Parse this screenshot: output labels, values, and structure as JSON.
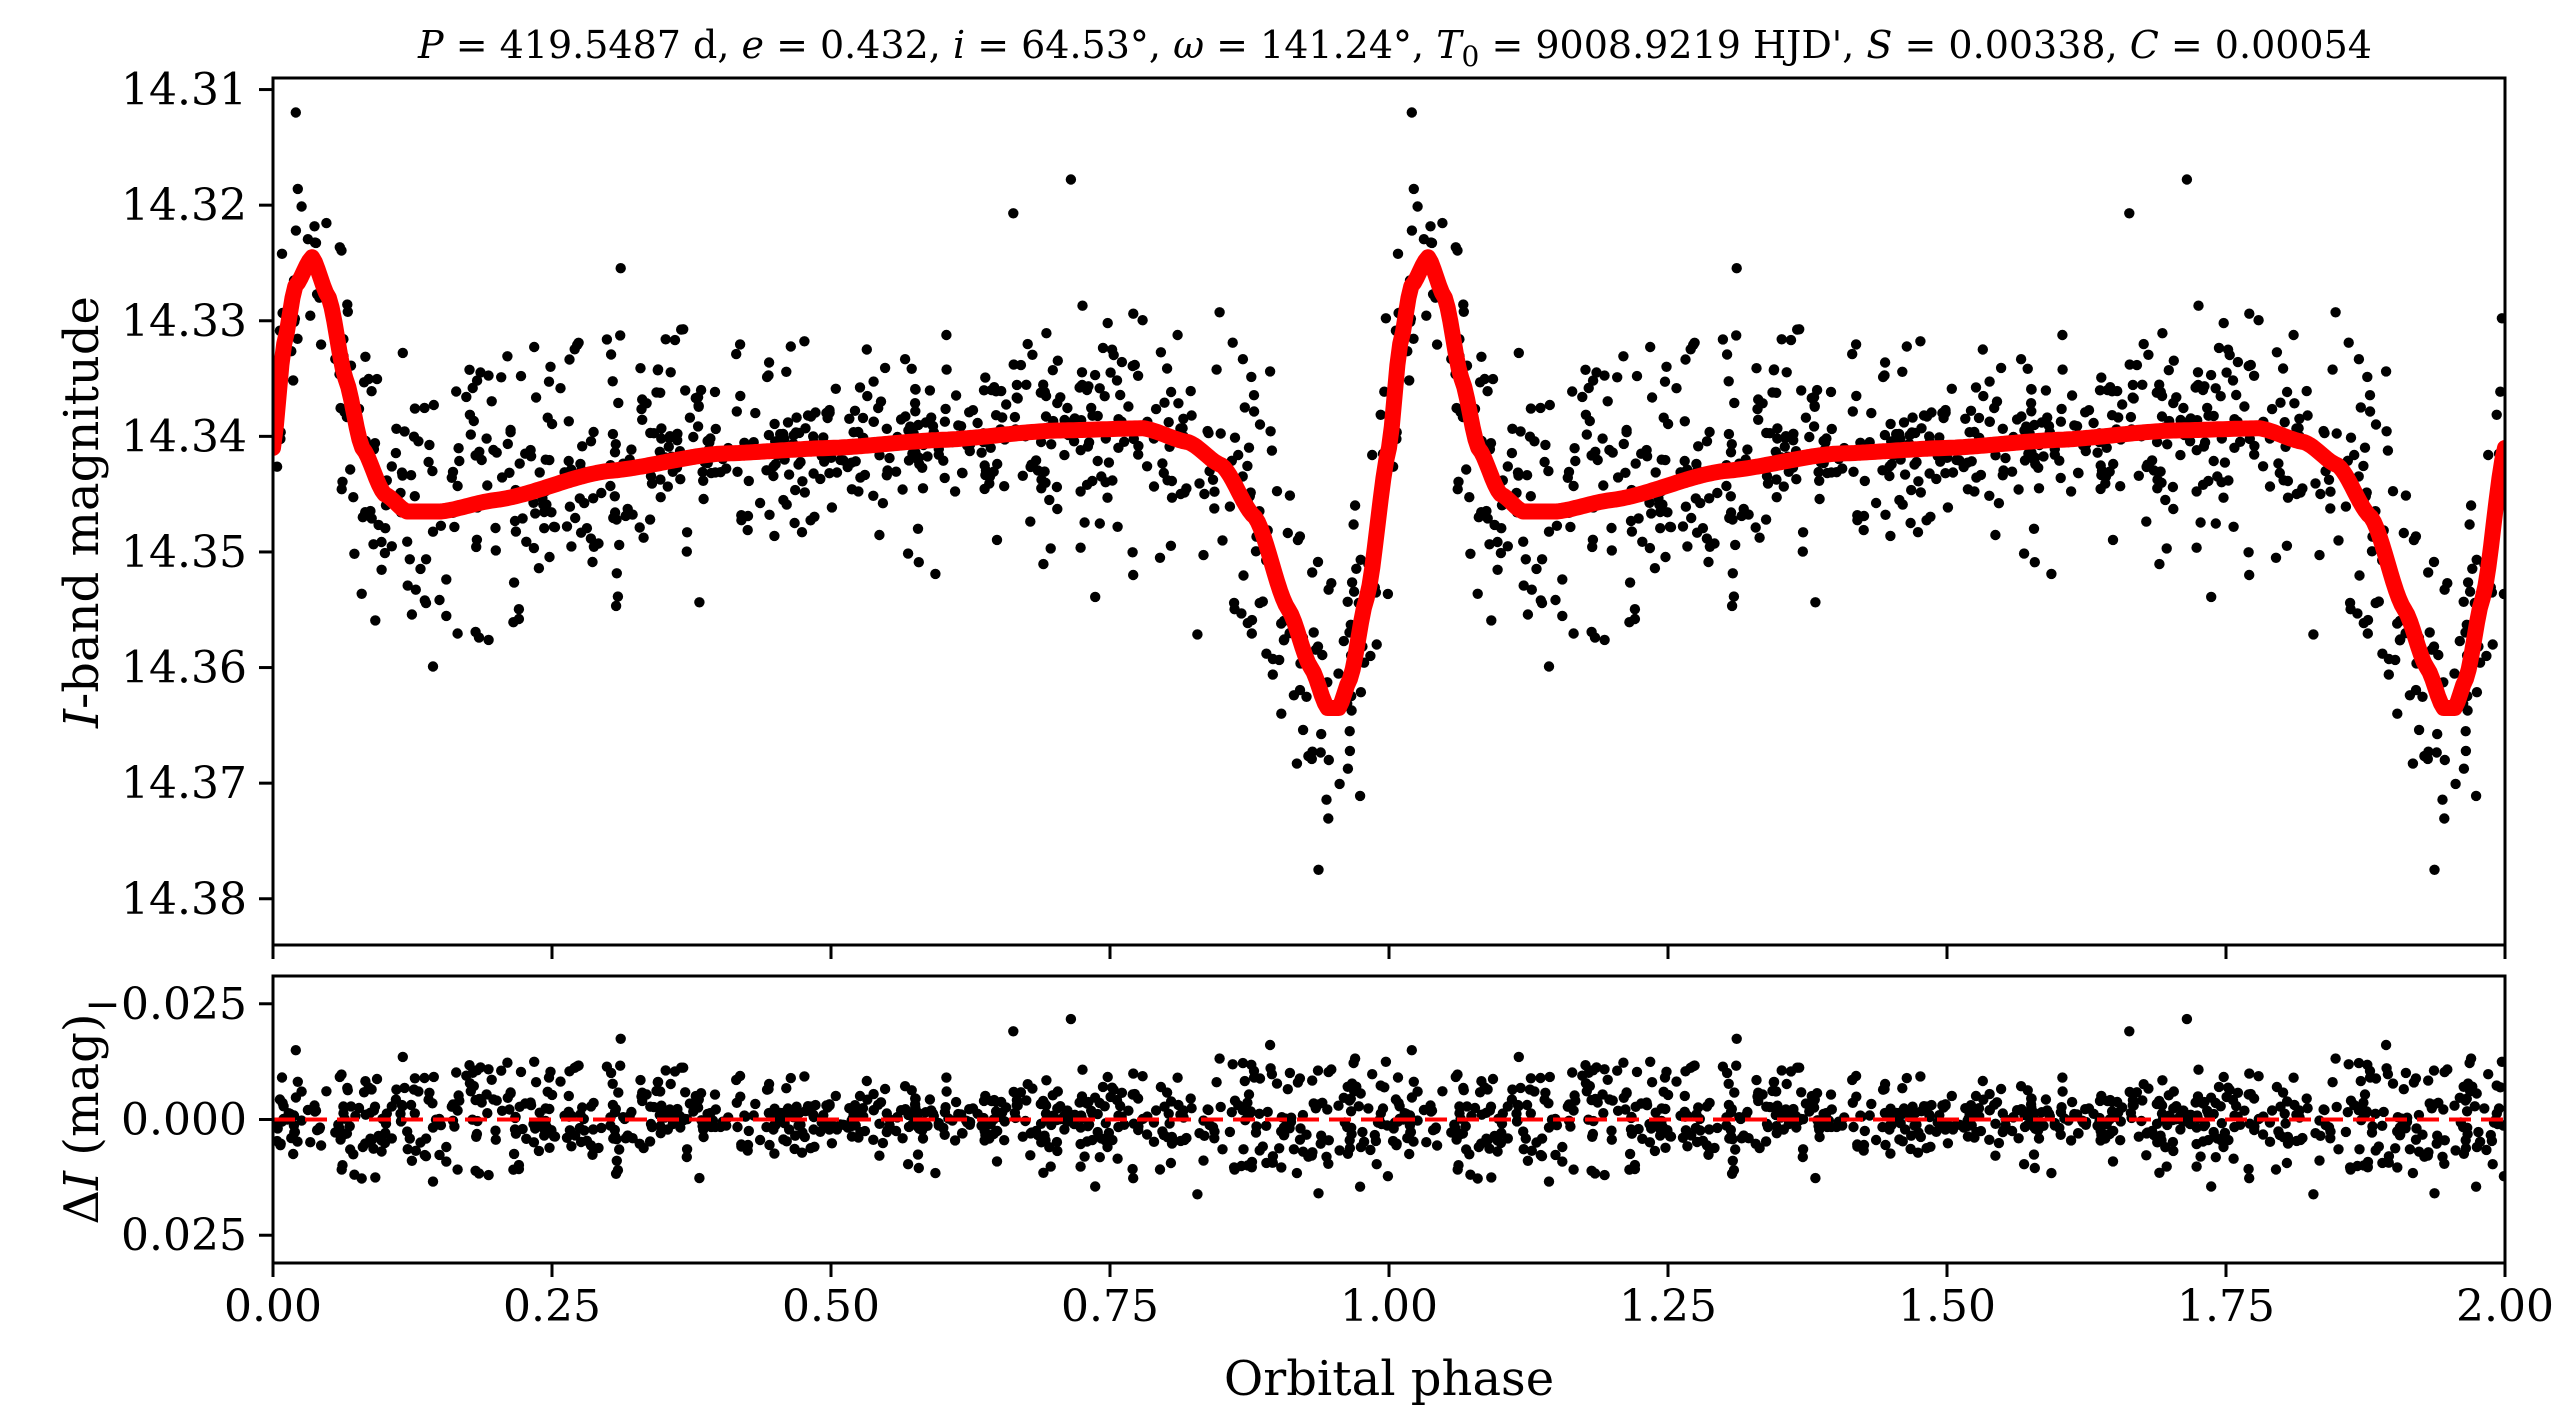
{
  "chart_data": [
    {
      "type": "scatter",
      "panel": "light-curve",
      "title": "P = 419.5487 d, e = 0.432, i = 64.53°, ω = 141.24°, T0 = 9008.9219 HJD', S = 0.00338, C = 0.00054",
      "xlabel": "",
      "ylabel": "I-band magnitude",
      "xlim": [
        0.0,
        2.0
      ],
      "ylim": [
        14.384,
        14.309
      ],
      "y_inverted": true,
      "xticks": [
        0.0,
        0.25,
        0.5,
        0.75,
        1.0,
        1.25,
        1.5,
        1.75,
        2.0
      ],
      "yticks": [
        "14.31",
        "14.32",
        "14.33",
        "14.34",
        "14.35",
        "14.36",
        "14.37",
        "14.38"
      ],
      "model_curve_color": "#ff0000",
      "point_color": "#000000",
      "model_params": {
        "period_days": 419.5487,
        "eccentricity": 0.432,
        "inclination_deg": 64.53,
        "omega_deg": 141.24,
        "T0_hjd": 9008.9219,
        "S": 0.00338,
        "C": 0.00054
      },
      "model_curve": {
        "x": [
          0.0,
          0.01,
          0.02,
          0.035,
          0.05,
          0.065,
          0.08,
          0.1,
          0.12,
          0.15,
          0.2,
          0.3,
          0.4,
          0.5,
          0.6,
          0.7,
          0.78,
          0.82,
          0.85,
          0.88,
          0.91,
          0.93,
          0.945,
          0.955,
          0.965,
          0.98,
          1.0
        ],
        "y": [
          14.341,
          14.332,
          14.327,
          14.3245,
          14.328,
          14.335,
          14.341,
          14.345,
          14.3465,
          14.3465,
          14.3455,
          14.343,
          14.3415,
          14.341,
          14.3403,
          14.3395,
          14.3393,
          14.3405,
          14.3425,
          14.347,
          14.355,
          14.36,
          14.3635,
          14.3635,
          14.361,
          14.354,
          14.341
        ]
      },
      "observed_points": {
        "n_shown": 1600,
        "note_x_range": [
          0.0,
          2.0
        ],
        "typical_scatter_mag": 0.006
      }
    },
    {
      "type": "scatter",
      "panel": "residuals",
      "xlabel": "Orbital phase",
      "ylabel": "ΔI (mag)",
      "xlim": [
        0.0,
        2.0
      ],
      "ylim": [
        0.031,
        -0.031
      ],
      "y_inverted": true,
      "xticks": [
        "0.00",
        "0.25",
        "0.50",
        "0.75",
        "1.00",
        "1.25",
        "1.50",
        "1.75",
        "2.00"
      ],
      "yticks": [
        "−0.025",
        "0.000",
        "0.025"
      ],
      "reference_line": {
        "y": 0.0,
        "style": "dashed",
        "color": "#ff0000"
      },
      "point_color": "#000000"
    }
  ],
  "labels": {
    "title_P": "P",
    "title_P_val": " = 419.5487 d, ",
    "title_e": "e",
    "title_e_val": " = 0.432, ",
    "title_i": "i",
    "title_i_val": " = 64.53°, ",
    "title_w": "ω",
    "title_w_val": " = 141.24°, ",
    "title_T": "T",
    "title_T_sub": "0",
    "title_T_val": " = 9008.9219 HJD', ",
    "title_S": "S",
    "title_S_val": " = 0.00338, ",
    "title_C": "C",
    "title_C_val": " = 0.00054",
    "ylabel_top_italic": "I",
    "ylabel_top_rest": "-band magnitude",
    "ylabel_bottom_delta": "Δ",
    "ylabel_bottom_italic": "I",
    "ylabel_bottom_rest": " (mag)",
    "xlabel": "Orbital phase"
  }
}
